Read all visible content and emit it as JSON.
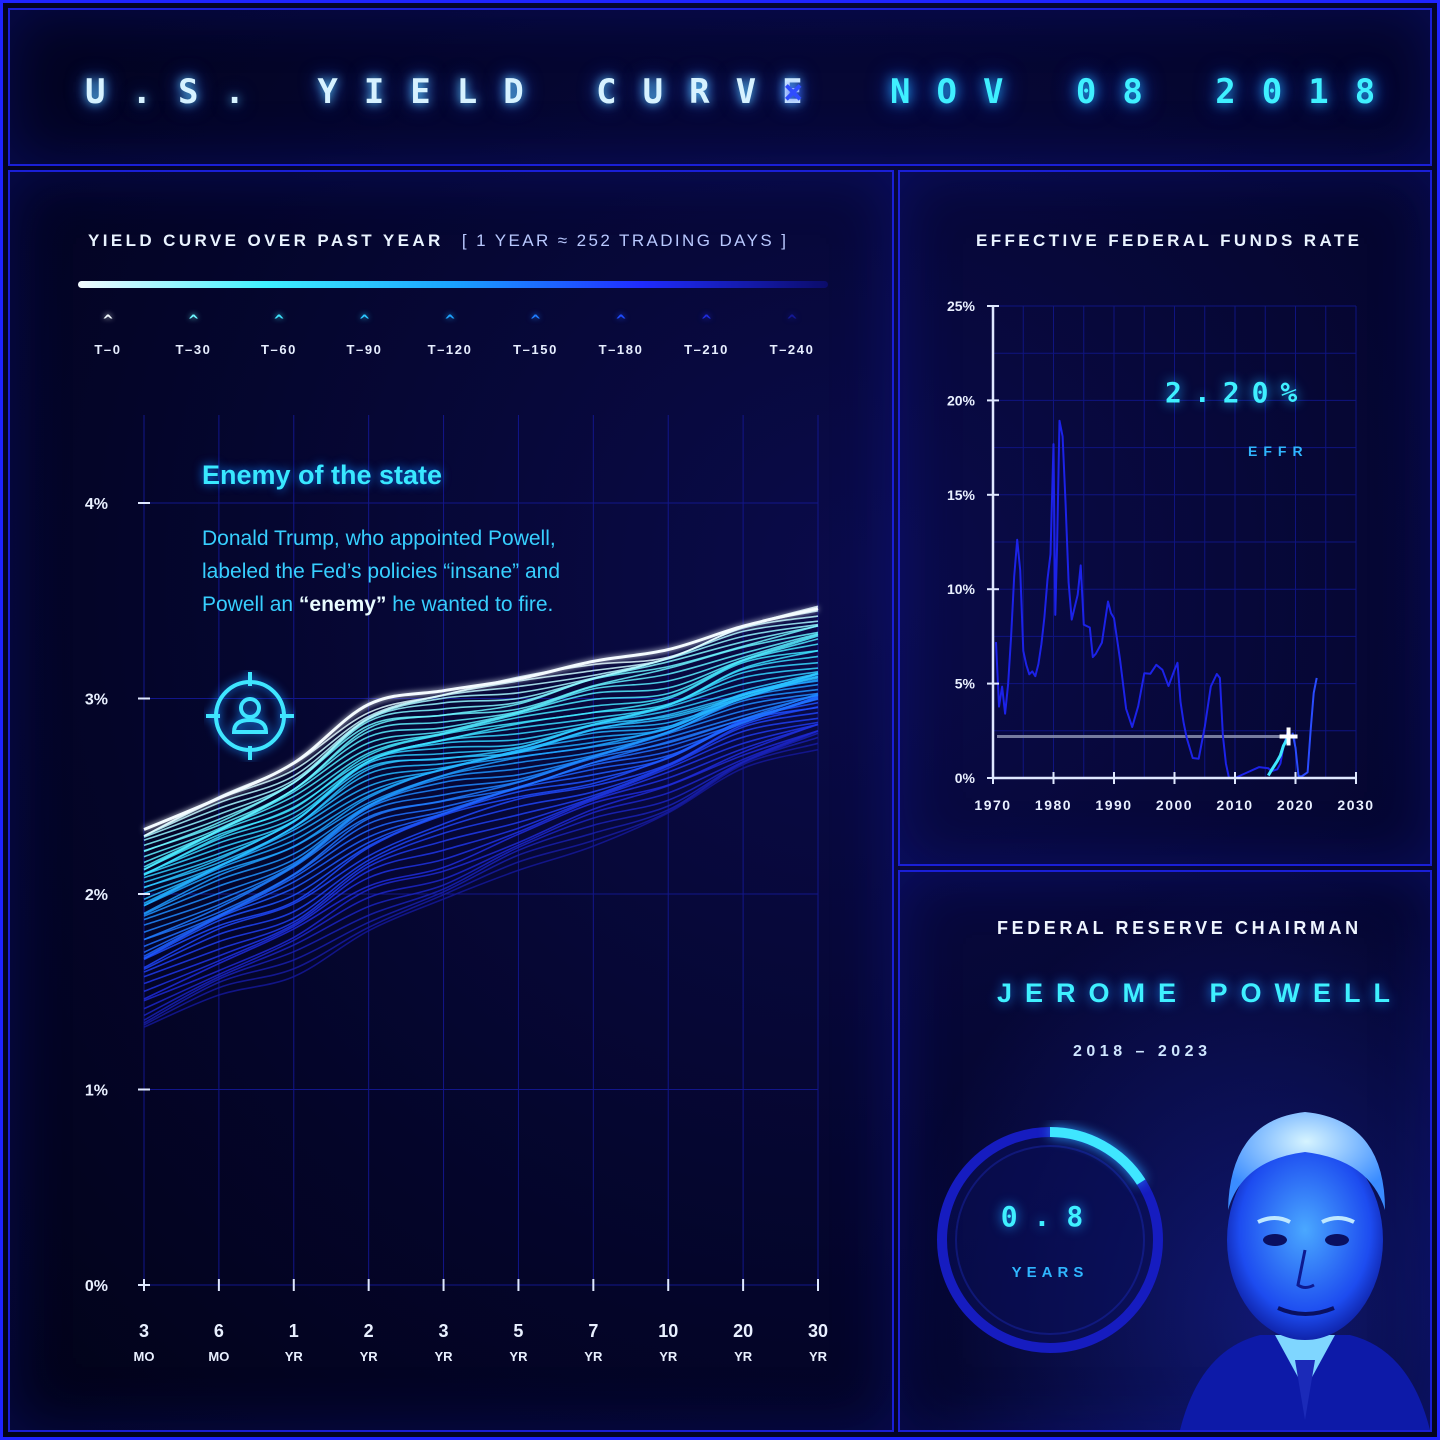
{
  "header": {
    "title": "U.S. YIELD CURVE",
    "separator": "×",
    "date": "NOV 08 2018"
  },
  "yield_panel": {
    "title": "YIELD CURVE OVER PAST YEAR",
    "subtitle": "[ 1 YEAR ≈ 252 TRADING DAYS ]",
    "legend": [
      {
        "label": "T–0",
        "color": "#f4fbff"
      },
      {
        "label": "T–30",
        "color": "#6ff6ff"
      },
      {
        "label": "T–60",
        "color": "#3fe6ff"
      },
      {
        "label": "T–90",
        "color": "#2cc6ff"
      },
      {
        "label": "T–120",
        "color": "#1ea4ff"
      },
      {
        "label": "T–150",
        "color": "#1f7cff"
      },
      {
        "label": "T–180",
        "color": "#1f4cff"
      },
      {
        "label": "T–210",
        "color": "#1f2cdc"
      },
      {
        "label": "T–240",
        "color": "#141896"
      }
    ],
    "annotation": {
      "title": "Enemy of the state",
      "body_1": "Donald Trump, who appointed Powell, labeled the Fed’s policies “insane” and Powell an ",
      "body_bold": "“enemy”",
      "body_2": " he wanted to fire.",
      "icon": "target-person-icon"
    }
  },
  "effr_panel": {
    "title": "EFFECTIVE FEDERAL FUNDS RATE",
    "value": "2.20%",
    "label": "EFFR"
  },
  "chair_panel": {
    "title": "FEDERAL RESERVE CHAIRMAN",
    "name": "JEROME POWELL",
    "term": "2018 – 2023",
    "tenure_value": "0.8",
    "tenure_unit": "YEARS",
    "tenure_fraction": 0.16,
    "portrait": "portrait-photo"
  },
  "chart_data": [
    {
      "type": "line",
      "title": "YIELD CURVE OVER PAST YEAR",
      "categories": [
        {
          "top": "3",
          "bottom": "MO"
        },
        {
          "top": "6",
          "bottom": "MO"
        },
        {
          "top": "1",
          "bottom": "YR"
        },
        {
          "top": "2",
          "bottom": "YR"
        },
        {
          "top": "3",
          "bottom": "YR"
        },
        {
          "top": "5",
          "bottom": "YR"
        },
        {
          "top": "7",
          "bottom": "YR"
        },
        {
          "top": "10",
          "bottom": "YR"
        },
        {
          "top": "20",
          "bottom": "YR"
        },
        {
          "top": "30",
          "bottom": "YR"
        }
      ],
      "y_ticks": [
        "0%",
        "1%",
        "2%",
        "3%",
        "4%"
      ],
      "ylim": [
        0,
        4.5
      ],
      "series": [
        {
          "lag": "T–0",
          "values": [
            2.33,
            2.49,
            2.67,
            2.97,
            3.04,
            3.1,
            3.19,
            3.25,
            3.37,
            3.46
          ]
        },
        {
          "lag": "T–30",
          "values": [
            2.22,
            2.39,
            2.56,
            2.84,
            2.93,
            2.99,
            3.08,
            3.15,
            3.29,
            3.38
          ]
        },
        {
          "lag": "T–60",
          "values": [
            2.12,
            2.28,
            2.45,
            2.73,
            2.8,
            2.86,
            2.95,
            3.01,
            3.16,
            3.24
          ]
        },
        {
          "lag": "T–90",
          "values": [
            2.04,
            2.2,
            2.36,
            2.63,
            2.71,
            2.76,
            2.84,
            2.9,
            3.04,
            3.13
          ]
        },
        {
          "lag": "T–120",
          "values": [
            1.93,
            2.09,
            2.26,
            2.51,
            2.62,
            2.69,
            2.78,
            2.86,
            3.0,
            3.09
          ]
        },
        {
          "lag": "T–150",
          "values": [
            1.78,
            1.95,
            2.12,
            2.38,
            2.5,
            2.58,
            2.67,
            2.77,
            2.92,
            3.02
          ]
        },
        {
          "lag": "T–180",
          "values": [
            1.65,
            1.82,
            1.98,
            2.25,
            2.38,
            2.49,
            2.59,
            2.7,
            2.86,
            2.96
          ]
        },
        {
          "lag": "T–210",
          "values": [
            1.48,
            1.66,
            1.8,
            2.03,
            2.16,
            2.31,
            2.44,
            2.56,
            2.75,
            2.86
          ]
        },
        {
          "lag": "T–240",
          "values": [
            1.3,
            1.47,
            1.6,
            1.82,
            1.95,
            2.12,
            2.27,
            2.41,
            2.62,
            2.75
          ]
        }
      ]
    },
    {
      "type": "line",
      "title": "EFFECTIVE FEDERAL FUNDS RATE",
      "x_ticks": [
        "1970",
        "1980",
        "1990",
        "2000",
        "2010",
        "2020",
        "2030"
      ],
      "y_ticks": [
        "0%",
        "5%",
        "10%",
        "15%",
        "20%",
        "25%"
      ],
      "xlim": [
        1970,
        2030
      ],
      "ylim": [
        0,
        25
      ],
      "reference_value": 2.2,
      "current_point": {
        "x": 2018.85,
        "y": 2.2
      },
      "series": [
        {
          "x": [
            1970.5,
            1971,
            1971.5,
            1972,
            1972.5,
            1973,
            1973.5,
            1974,
            1974.5,
            1975,
            1975.5,
            1976,
            1976.5,
            1977,
            1977.5,
            1978,
            1978.5,
            1979,
            1979.5,
            1980,
            1980.3,
            1980.6,
            1981,
            1981.5,
            1982,
            1982.5,
            1983,
            1984,
            1984.5,
            1985,
            1986,
            1986.5,
            1987,
            1988,
            1989,
            1989.5,
            1990,
            1991,
            1992,
            1993,
            1994,
            1995,
            1996,
            1997,
            1998,
            1999,
            2000,
            2000.5,
            2001,
            2001.5,
            2002,
            2003,
            2004,
            2005,
            2006,
            2007,
            2007.5,
            2008,
            2008.5,
            2009,
            2010,
            2012,
            2014,
            2015.5,
            2016,
            2017,
            2017.5,
            2018,
            2018.85
          ],
          "y": [
            7.2,
            4.2,
            5.3,
            3.5,
            4.6,
            7.0,
            10.5,
            12.9,
            11.5,
            7.0,
            5.8,
            5.0,
            5.3,
            5.5,
            6.5,
            7.5,
            8.5,
            10.1,
            11.4,
            17.6,
            9.0,
            12.8,
            19.1,
            17.8,
            14.0,
            10.1,
            8.6,
            10.2,
            11.6,
            8.0,
            7.5,
            6.0,
            6.6,
            7.6,
            9.8,
            8.8,
            8.1,
            5.8,
            3.5,
            3.0,
            4.3,
            5.8,
            5.3,
            5.5,
            5.4,
            5.0,
            6.2,
            6.5,
            4.0,
            2.5,
            1.7,
            1.0,
            1.4,
            3.2,
            5.0,
            5.2,
            4.8,
            2.0,
            1.0,
            0.2,
            0.18,
            0.15,
            0.1,
            0.13,
            0.4,
            0.9,
            1.2,
            1.7,
            2.2
          ]
        },
        {
          "x": [
            2019.5,
            2020,
            2020.5,
            2021,
            2022,
            2022.5,
            2023,
            2023.5
          ],
          "y": [
            2.4,
            1.6,
            0.1,
            0.08,
            0.3,
            2.5,
            4.5,
            5.3
          ]
        }
      ]
    }
  ]
}
